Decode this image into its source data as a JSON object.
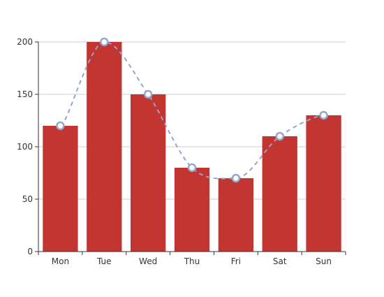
{
  "chart_data": {
    "type": "bar",
    "categories": [
      "Mon",
      "Tue",
      "Wed",
      "Thu",
      "Fri",
      "Sat",
      "Sun"
    ],
    "yticks": [
      "0",
      "50",
      "100",
      "150",
      "200"
    ],
    "ylim": [
      0,
      200
    ],
    "grid": true,
    "series": [
      {
        "type": "bar",
        "values": [
          120,
          200,
          150,
          80,
          70,
          110,
          130
        ]
      },
      {
        "type": "line",
        "smooth": true,
        "dashed": true,
        "values": [
          120,
          200,
          150,
          80,
          70,
          110,
          130
        ]
      }
    ],
    "colors": {
      "bar": "#c23531",
      "line": "#91a7cf",
      "grid": "#cccccc",
      "axis": "#333333"
    }
  }
}
